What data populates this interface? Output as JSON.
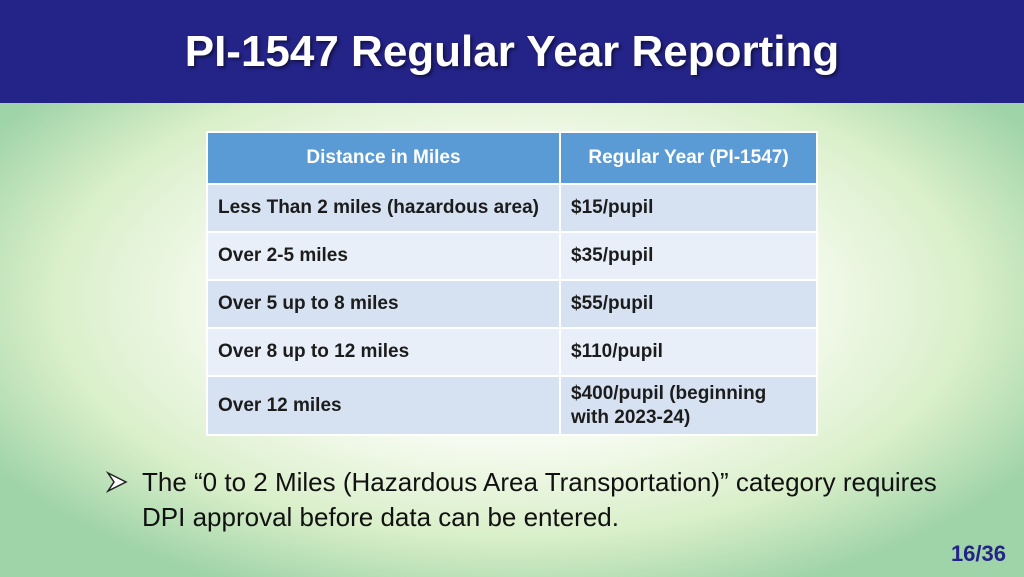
{
  "header": {
    "title": "PI-1547 Regular Year Reporting"
  },
  "table": {
    "headers": [
      "Distance in Miles",
      "Regular Year (PI-1547)"
    ],
    "rows": [
      [
        "Less Than 2 miles (hazardous area)",
        "$15/pupil"
      ],
      [
        "Over 2-5 miles",
        "$35/pupil"
      ],
      [
        "Over 5 up to 8 miles",
        "$55/pupil"
      ],
      [
        "Over 8 up to 12 miles",
        "$110/pupil"
      ],
      [
        "Over 12 miles",
        "$400/pupil (beginning with 2023-24)"
      ]
    ]
  },
  "bullet": "The “0 to 2 Miles (Hazardous Area Transportation)” category requires DPI approval before data can be entered.",
  "page_number": "16/36"
}
